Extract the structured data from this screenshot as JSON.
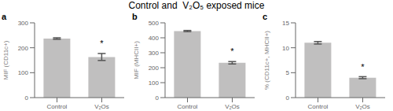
{
  "title": "Control and  V₂O₅ exposed mice",
  "chart_data": [
    {
      "type": "bar",
      "panel_label": "a",
      "ylabel": "MIF (CD11c+)",
      "ylim": [
        0,
        300
      ],
      "yticks": [
        0,
        100,
        200,
        300
      ],
      "categories": [
        "Control",
        "V₂Os"
      ],
      "values": [
        237,
        163
      ],
      "errors": [
        3,
        14
      ],
      "color": "#c0bfbf",
      "annotations": [
        {
          "text": "*",
          "x": "V₂Os",
          "y": 185
        }
      ]
    },
    {
      "type": "bar",
      "panel_label": "b",
      "ylabel": "MIF (MHCII+)",
      "ylim": [
        0,
        500
      ],
      "yticks": [
        0,
        100,
        200,
        300,
        400,
        500
      ],
      "categories": [
        "Control",
        "V₂Os"
      ],
      "values": [
        445,
        233
      ],
      "errors": [
        4,
        8
      ],
      "color": "#c0bfbf",
      "annotations": [
        {
          "text": "*",
          "x": "V₂Os",
          "y": 258
        }
      ]
    },
    {
      "type": "bar",
      "panel_label": "c",
      "ylabel": "% (CD11c+, MHCII+)",
      "ylim": [
        0,
        15
      ],
      "yticks": [
        0,
        5,
        10,
        15
      ],
      "categories": [
        "Control",
        "V₂Os"
      ],
      "values": [
        11.0,
        4.0
      ],
      "errors": [
        0.25,
        0.2
      ],
      "color": "#c0bfbf",
      "annotations": [
        {
          "text": "*",
          "x": "V₂Os",
          "y": 4.55
        }
      ]
    }
  ]
}
